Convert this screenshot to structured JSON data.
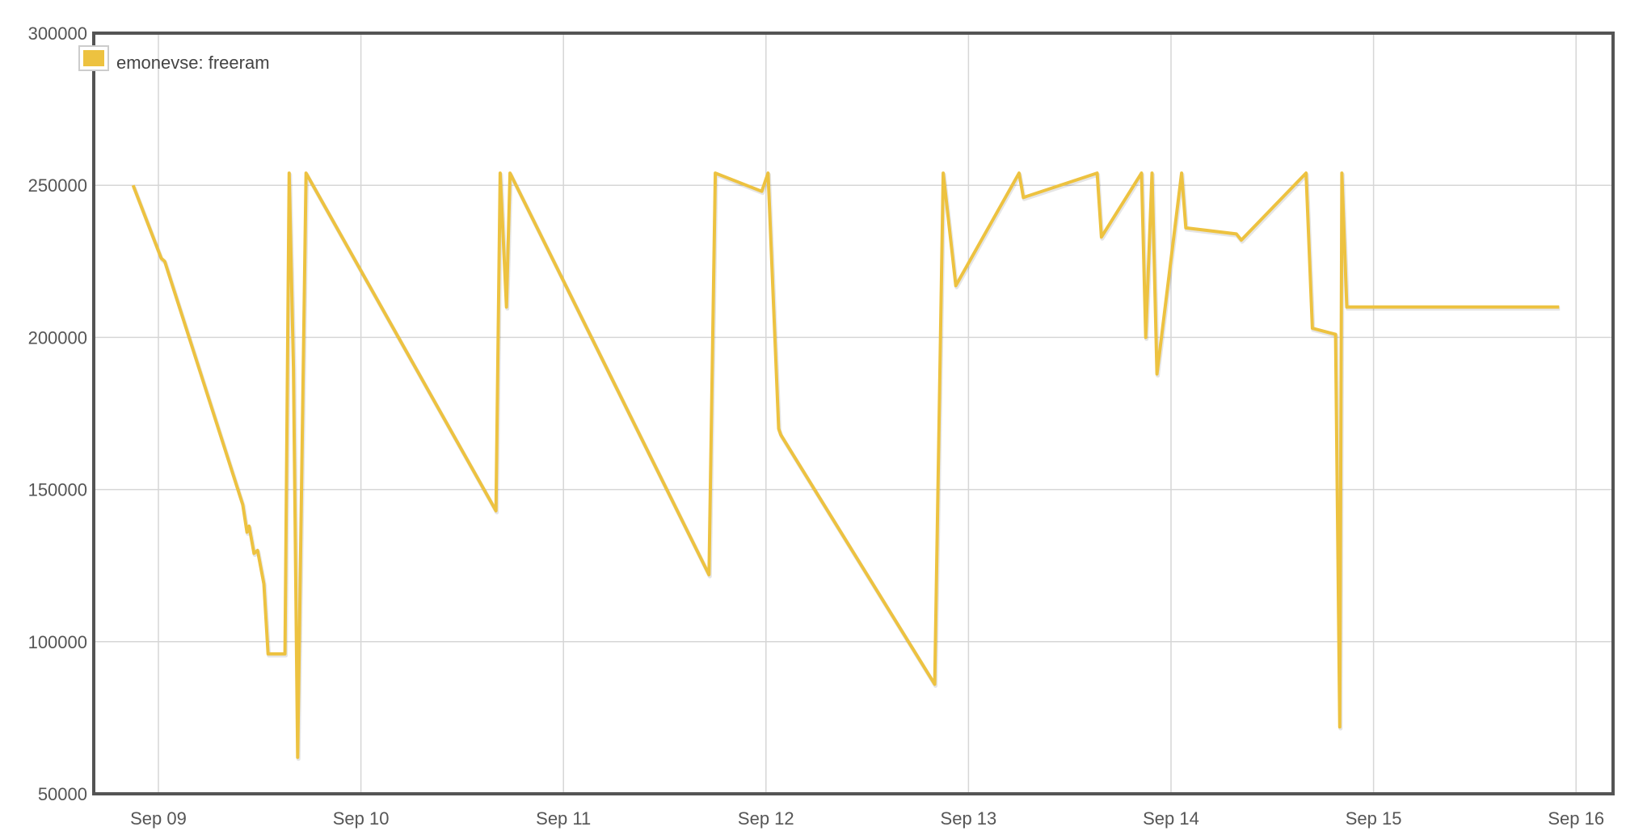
{
  "chart_data": {
    "type": "line",
    "title": "",
    "xlabel": "",
    "ylabel": "",
    "x_axis": {
      "unit": "date",
      "tick_labels": [
        "Sep 09",
        "Sep 10",
        "Sep 11",
        "Sep 12",
        "Sep 13",
        "Sep 14",
        "Sep 15",
        "Sep 16"
      ]
    },
    "ylim": [
      50000,
      300000
    ],
    "y_ticks": [
      50000,
      100000,
      150000,
      200000,
      250000,
      300000
    ],
    "grid": true,
    "legend": {
      "position": "top-left",
      "entries": [
        "emonevse: freeram"
      ]
    },
    "series": [
      {
        "name": "emonevse: freeram",
        "color": "#edc240",
        "x": [
          "Sep 08 21:00",
          "Sep 09 00:20",
          "Sep 09 00:45",
          "Sep 09 10:00",
          "Sep 09 10:30",
          "Sep 09 10:45",
          "Sep 09 11:20",
          "Sep 09 11:45",
          "Sep 09 12:30",
          "Sep 09 13:00",
          "Sep 09 15:00",
          "Sep 09 15:30",
          "Sep 09 16:00",
          "Sep 09 16:30",
          "Sep 09 17:30",
          "Sep 10 16:00",
          "Sep 10 16:30",
          "Sep 10 17:15",
          "Sep 10 17:40",
          "Sep 11 17:15",
          "Sep 11 18:00",
          "Sep 11 23:30",
          "Sep 12 00:15",
          "Sep 12 01:30",
          "Sep 12 01:45",
          "Sep 12 20:00",
          "Sep 12 21:00",
          "Sep 12 22:30",
          "Sep 13 06:00",
          "Sep 13 06:30",
          "Sep 13 15:15",
          "Sep 13 15:45",
          "Sep 13 20:30",
          "Sep 13 21:00",
          "Sep 13 21:45",
          "Sep 13 22:20",
          "Sep 14 01:15",
          "Sep 14 01:45",
          "Sep 14 07:45",
          "Sep 14 08:20",
          "Sep 14 16:00",
          "Sep 14 16:45",
          "Sep 14 19:30",
          "Sep 14 20:00",
          "Sep 14 20:15",
          "Sep 14 20:50",
          "Sep 14 21:30",
          "Sep 15 01:45",
          "Sep 15 02:30",
          "Sep 15 16:30",
          "Sep 15 17:00",
          "Sep 15 21:50",
          "Sep 15 22:00"
        ],
        "values": [
          250000,
          226000,
          225000,
          145000,
          136000,
          138000,
          129000,
          130000,
          119000,
          96000,
          96000,
          254000,
          190000,
          62000,
          254000,
          143000,
          254000,
          210000,
          254000,
          122000,
          254000,
          248000,
          254000,
          170000,
          168000,
          86000,
          254000,
          217000,
          254000,
          246000,
          254000,
          233000,
          254000,
          200000,
          254000,
          188000,
          254000,
          236000,
          234000,
          232000,
          254000,
          203000,
          201000,
          72000,
          254000,
          210000,
          210000,
          210000,
          210000,
          210000,
          210000,
          210000,
          210000
        ]
      }
    ]
  }
}
